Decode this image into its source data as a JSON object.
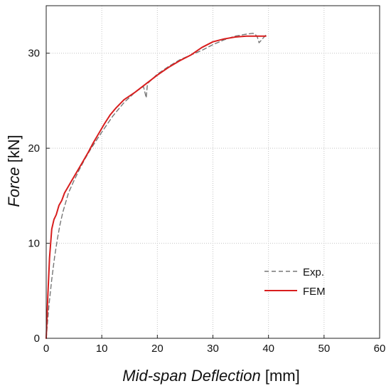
{
  "chart_data": {
    "type": "line",
    "title": "",
    "xlabel_italic": "Mid-span Deflection",
    "xlabel_unit": " [mm]",
    "ylabel_italic": "Force",
    "ylabel_unit": " [kN]",
    "xlim": [
      0,
      60
    ],
    "ylim": [
      0,
      35
    ],
    "xticks": [
      0,
      10,
      20,
      30,
      40,
      50,
      60
    ],
    "yticks": [
      0,
      10,
      20,
      30
    ],
    "grid": true,
    "legend_position": "bottom-right",
    "series": [
      {
        "name": "Exp.",
        "style": "dashed",
        "color": "#777777",
        "x": [
          0,
          0.5,
          1,
          1.5,
          2,
          2.5,
          3,
          3.5,
          4,
          5,
          6,
          7,
          8,
          9,
          10,
          12,
          14,
          16,
          17.5,
          18,
          18.2,
          18.4,
          20,
          22,
          24,
          26,
          28,
          30,
          32,
          34,
          36,
          37.2,
          37.6,
          38,
          38.3,
          39.5
        ],
        "y": [
          0,
          3.5,
          6.2,
          8.5,
          10.4,
          12.0,
          13.3,
          14.3,
          15.3,
          16.6,
          17.8,
          18.9,
          19.9,
          20.8,
          21.7,
          23.4,
          24.8,
          25.9,
          26.5,
          25.3,
          26.7,
          26.9,
          27.8,
          28.6,
          29.3,
          29.8,
          30.3,
          30.9,
          31.4,
          31.8,
          32.0,
          32.1,
          32.0,
          31.7,
          31.1,
          31.9
        ]
      },
      {
        "name": "FEM",
        "style": "solid",
        "color": "#d81e1e",
        "x": [
          0,
          0.3,
          0.6,
          1.0,
          1.4,
          1.8,
          2.3,
          2.8,
          3.3,
          3.8,
          4.5,
          5.5,
          6.5,
          7.5,
          8.5,
          9.5,
          10.5,
          11.5,
          12.5,
          14,
          16,
          18,
          20,
          22,
          24,
          26,
          28,
          30,
          32,
          34,
          36,
          38,
          39.5
        ],
        "y": [
          0,
          4.5,
          8.5,
          11.5,
          12.5,
          13.0,
          14.0,
          14.5,
          15.3,
          15.8,
          16.5,
          17.5,
          18.5,
          19.5,
          20.6,
          21.6,
          22.6,
          23.5,
          24.2,
          25.1,
          25.9,
          26.8,
          27.7,
          28.5,
          29.2,
          29.8,
          30.6,
          31.2,
          31.5,
          31.7,
          31.8,
          31.8,
          31.8
        ]
      }
    ]
  }
}
